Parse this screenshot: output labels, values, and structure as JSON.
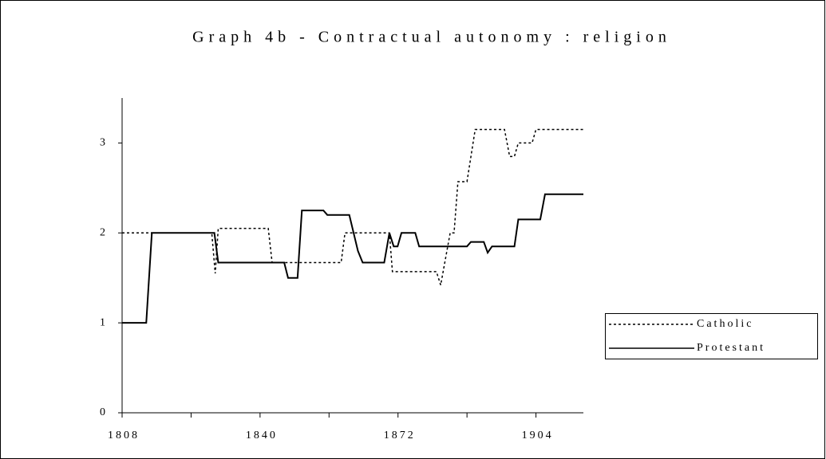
{
  "chart_data": {
    "type": "line",
    "title": "Graph 4b - Contractual autonomy : religion",
    "xlim": [
      1808,
      1915
    ],
    "xticks": [
      1808,
      1840,
      1872,
      1904
    ],
    "xminor_ticks": [
      1824,
      1856,
      1888
    ],
    "ylim": [
      0,
      3.5
    ],
    "yticks": [
      0,
      1,
      2,
      3
    ],
    "grid": false,
    "legend": "right",
    "series": [
      {
        "name": "Catholic",
        "color": "#000000",
        "style": "dotted",
        "x": [
          1808,
          1828.8,
          1829.6,
          1830.3,
          1841.9,
          1842.8,
          1858.8,
          1859.7,
          1870,
          1870.7,
          1880.9,
          1881.9,
          1884.1,
          1885,
          1885.9,
          1888,
          1889.9,
          1896.7,
          1897.9,
          1899,
          1899.9,
          1903.1,
          1904,
          1915
        ],
        "values": [
          2,
          2,
          1.55,
          2.05,
          2.05,
          1.67,
          1.67,
          2,
          2,
          1.57,
          1.57,
          1.42,
          2,
          2,
          2.57,
          2.57,
          3.15,
          3.15,
          2.85,
          2.85,
          3,
          3,
          3.15,
          3.15
        ]
      },
      {
        "name": "Protestant",
        "color": "#000000",
        "style": "solid",
        "x": [
          1808,
          1813.6,
          1814.9,
          1829.4,
          1830.3,
          1845.6,
          1846.5,
          1848.7,
          1849.7,
          1854.7,
          1855.6,
          1860.7,
          1862.7,
          1863.8,
          1868.8,
          1870,
          1871,
          1871.9,
          1872.8,
          1876,
          1876.9,
          1888,
          1888.9,
          1891.9,
          1892.8,
          1893.8,
          1899,
          1899.9,
          1905,
          1906.1,
          1915
        ],
        "values": [
          1,
          1,
          2,
          2,
          1.67,
          1.67,
          1.5,
          1.5,
          2.25,
          2.25,
          2.2,
          2.2,
          1.8,
          1.67,
          1.67,
          2,
          1.85,
          1.85,
          2,
          2,
          1.85,
          1.85,
          1.9,
          1.9,
          1.78,
          1.85,
          1.85,
          2.15,
          2.15,
          2.43,
          2.43
        ]
      }
    ]
  }
}
